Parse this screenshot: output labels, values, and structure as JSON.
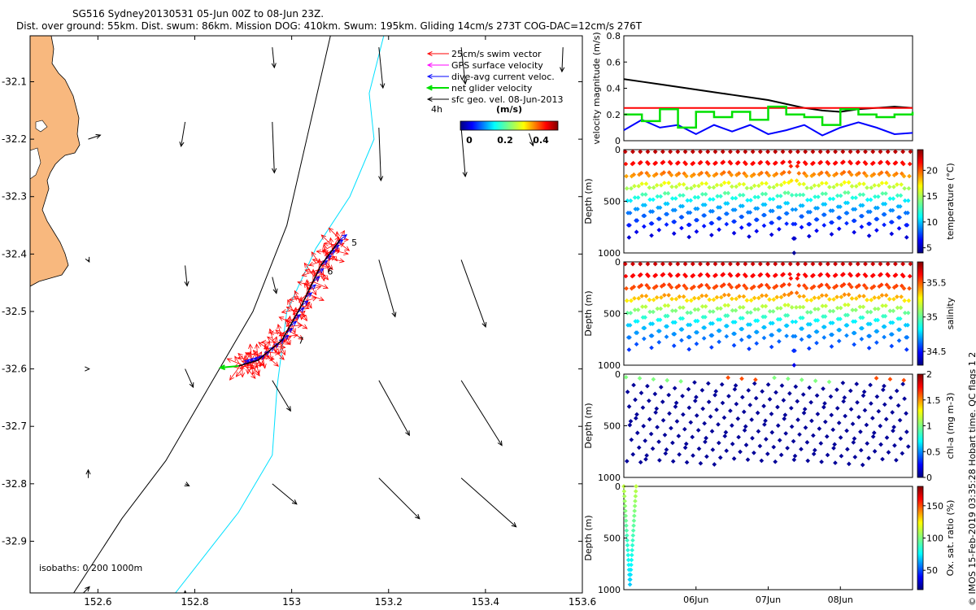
{
  "header": {
    "title": "SG516 Sydney20130531 05-Jun 00Z to 08-Jun 23Z.",
    "subtitle": "Dist. over ground: 55km. Dist. swum: 86km. Mission DOG: 410km. Swum: 195km. Gliding 14cm/s 273T COG-DAC=12cm/s 276T"
  },
  "stamp": "© IMOS 15-Feb-2019 03:35:28 Hobart time. QC flags 1 2",
  "colors": {
    "land": "#f8b87e",
    "isobath_200": "#000000",
    "isobath_1000": "#00e0ff",
    "swim": "#ff0000",
    "gps": "#ff00ff",
    "dac": "#0000ff",
    "net": "#00e000",
    "sfc": "#000000"
  },
  "map": {
    "legend": [
      {
        "label": "25cm/s swim vector",
        "color": "#ff0000"
      },
      {
        "label": "GPS surface velocity",
        "color": "#ff00ff"
      },
      {
        "label": "dive-avg current veloc.",
        "color": "#0000ff"
      },
      {
        "label": "net glider velocity",
        "color": "#00e000"
      },
      {
        "label": "sfc geo. vel. 08-Jun-2013",
        "color": "#000000"
      }
    ],
    "scale_note": "4h",
    "colorbar_unit": "(m/s)",
    "colorbar_ticks": [
      "0",
      "0.2",
      "0.4"
    ],
    "isobaths_label": "isobaths: 0   200  1000m",
    "day_labels": [
      "5",
      "6",
      "7"
    ]
  },
  "chart_data": [
    {
      "type": "map-vector",
      "xticks": [
        152.6,
        152.8,
        153,
        153.2,
        153.4,
        153.6
      ],
      "xtick_labels": [
        "152.6",
        "152.8",
        "153",
        "153.2",
        "153.4",
        "153.6"
      ],
      "yticks": [
        -32.1,
        -32.2,
        -32.3,
        -32.4,
        -32.5,
        -32.6,
        -32.7,
        -32.8,
        -32.9
      ],
      "xlim": [
        152.46,
        153.6
      ],
      "ylim": [
        -32.99,
        -32.02
      ],
      "isobath_200": [
        [
          153.08,
          -32.02
        ],
        [
          152.99,
          -32.35
        ],
        [
          152.92,
          -32.5
        ],
        [
          152.83,
          -32.63
        ],
        [
          152.74,
          -32.76
        ],
        [
          152.65,
          -32.86
        ],
        [
          152.55,
          -32.99
        ]
      ],
      "isobath_1000": [
        [
          153.19,
          -32.02
        ],
        [
          153.16,
          -32.12
        ],
        [
          153.17,
          -32.2
        ],
        [
          153.12,
          -32.3
        ],
        [
          153.05,
          -32.39
        ],
        [
          152.99,
          -32.5
        ],
        [
          152.97,
          -32.63
        ],
        [
          152.96,
          -32.75
        ],
        [
          152.89,
          -32.85
        ],
        [
          152.76,
          -32.99
        ]
      ],
      "glider_track": [
        [
          153.1,
          -32.375
        ],
        [
          153.06,
          -32.42
        ],
        [
          153.02,
          -32.49
        ],
        [
          152.98,
          -32.55
        ],
        [
          152.93,
          -32.585
        ],
        [
          152.89,
          -32.595
        ]
      ],
      "day_positions": [
        [
          153.11,
          -32.38
        ],
        [
          153.06,
          -32.43
        ],
        [
          153.0,
          -32.55
        ]
      ],
      "sfc_vectors": [
        {
          "lon": 152.58,
          "lat": -32.2,
          "u": 0.06,
          "v": 0.02
        },
        {
          "lon": 152.78,
          "lat": -32.17,
          "u": -0.02,
          "v": -0.12
        },
        {
          "lon": 152.96,
          "lat": -32.17,
          "u": 0.01,
          "v": -0.25
        },
        {
          "lon": 153.18,
          "lat": -32.18,
          "u": 0.01,
          "v": -0.26
        },
        {
          "lon": 153.35,
          "lat": -32.18,
          "u": 0.02,
          "v": -0.24
        },
        {
          "lon": 153.49,
          "lat": -32.19,
          "u": 0.02,
          "v": -0.06
        },
        {
          "lon": 152.96,
          "lat": -32.04,
          "u": 0.01,
          "v": -0.1
        },
        {
          "lon": 153.18,
          "lat": -32.04,
          "u": 0.02,
          "v": -0.2
        },
        {
          "lon": 153.35,
          "lat": -32.04,
          "u": 0.02,
          "v": -0.18
        },
        {
          "lon": 153.56,
          "lat": -32.04,
          "u": -0.005,
          "v": -0.12
        },
        {
          "lon": 152.58,
          "lat": -32.41,
          "u": 0.005,
          "v": -0.01
        },
        {
          "lon": 152.78,
          "lat": -32.42,
          "u": 0.01,
          "v": -0.1
        },
        {
          "lon": 152.96,
          "lat": -32.44,
          "u": 0.02,
          "v": -0.08
        },
        {
          "lon": 153.18,
          "lat": -32.41,
          "u": 0.08,
          "v": -0.28
        },
        {
          "lon": 153.35,
          "lat": -32.41,
          "u": 0.12,
          "v": -0.33
        },
        {
          "lon": 152.58,
          "lat": -32.6,
          "u": 0.005,
          "v": 0.0
        },
        {
          "lon": 152.78,
          "lat": -32.6,
          "u": 0.04,
          "v": -0.09
        },
        {
          "lon": 152.96,
          "lat": -32.62,
          "u": 0.09,
          "v": -0.15
        },
        {
          "lon": 153.18,
          "lat": -32.62,
          "u": 0.15,
          "v": -0.27
        },
        {
          "lon": 153.35,
          "lat": -32.62,
          "u": 0.2,
          "v": -0.32
        },
        {
          "lon": 152.58,
          "lat": -32.79,
          "u": 0.0,
          "v": 0.04
        },
        {
          "lon": 152.78,
          "lat": -32.8,
          "u": 0.02,
          "v": -0.01
        },
        {
          "lon": 152.96,
          "lat": -32.8,
          "u": 0.12,
          "v": -0.1
        },
        {
          "lon": 153.18,
          "lat": -32.79,
          "u": 0.2,
          "v": -0.2
        },
        {
          "lon": 153.35,
          "lat": -32.79,
          "u": 0.27,
          "v": -0.24
        },
        {
          "lon": 152.57,
          "lat": -32.99,
          "u": 0.03,
          "v": 0.03
        },
        {
          "lon": 152.78,
          "lat": -32.99,
          "u": 0.0,
          "v": 0.01
        }
      ]
    },
    {
      "type": "line",
      "ylabel": "velocity magnitude (m/s)",
      "ylim": [
        0,
        0.8
      ],
      "yticks": [
        0,
        0.2,
        0.4,
        0.6,
        0.8
      ],
      "xlim": [
        5.0,
        9.0
      ],
      "x": [
        5.0,
        5.25,
        5.5,
        5.75,
        6.0,
        6.25,
        6.5,
        6.75,
        7.0,
        7.25,
        7.5,
        7.75,
        8.0,
        8.25,
        8.5,
        8.75,
        9.0
      ],
      "series": [
        {
          "key": "sfc",
          "color": "#000000",
          "values": [
            0.47,
            0.45,
            0.43,
            0.41,
            0.39,
            0.37,
            0.35,
            0.33,
            0.31,
            0.28,
            0.25,
            0.23,
            0.22,
            0.24,
            0.25,
            0.26,
            0.25
          ]
        },
        {
          "key": "swim",
          "color": "#ff0000",
          "values": [
            0.25,
            0.25,
            0.25,
            0.25,
            0.25,
            0.25,
            0.25,
            0.25,
            0.25,
            0.25,
            0.25,
            0.25,
            0.25,
            0.25,
            0.25,
            0.25,
            0.25
          ]
        },
        {
          "key": "dac",
          "color": "#0000ff",
          "values": [
            0.08,
            0.16,
            0.1,
            0.12,
            0.05,
            0.12,
            0.07,
            0.12,
            0.05,
            0.08,
            0.12,
            0.04,
            0.1,
            0.14,
            0.1,
            0.05,
            0.06
          ]
        },
        {
          "key": "net",
          "color": "#00e000",
          "values": [
            0.2,
            0.15,
            0.24,
            0.1,
            0.22,
            0.18,
            0.22,
            0.16,
            0.26,
            0.2,
            0.18,
            0.12,
            0.24,
            0.2,
            0.18,
            0.2,
            0.22
          ]
        }
      ]
    },
    {
      "type": "scatter",
      "variable": "temperature",
      "ylabel": "Depth (m)",
      "clabel": "temperature (°C)",
      "ylim": [
        0,
        1000
      ],
      "yticks": [
        0,
        500,
        1000
      ],
      "clim": [
        4,
        24
      ],
      "cticks": [
        5,
        10,
        15,
        20
      ],
      "xlim": [
        5.0,
        9.0
      ],
      "dives": 38,
      "top": 20,
      "max_depth": 850,
      "deep_dive_depth": 1000,
      "deep_dive_time": 7.35,
      "colorbar": "jet",
      "profile": [
        [
          0,
          23
        ],
        [
          100,
          22
        ],
        [
          200,
          20
        ],
        [
          300,
          17
        ],
        [
          400,
          14
        ],
        [
          500,
          11
        ],
        [
          600,
          9
        ],
        [
          800,
          6
        ],
        [
          1000,
          4.5
        ]
      ]
    },
    {
      "type": "scatter",
      "variable": "salinity",
      "ylabel": "Depth (m)",
      "clabel": "salinity",
      "ylim": [
        0,
        1000
      ],
      "yticks": [
        0,
        500,
        1000
      ],
      "clim": [
        34.3,
        35.8
      ],
      "cticks": [
        34.5,
        35,
        35.5
      ],
      "xlim": [
        5.0,
        9.0
      ],
      "dives": 38,
      "top": 20,
      "max_depth": 850,
      "deep_dive_depth": 1000,
      "deep_dive_time": 7.35,
      "colorbar": "jet",
      "profile": [
        [
          0,
          35.7
        ],
        [
          150,
          35.6
        ],
        [
          300,
          35.45
        ],
        [
          400,
          35.2
        ],
        [
          500,
          35.0
        ],
        [
          600,
          34.8
        ],
        [
          800,
          34.6
        ],
        [
          1000,
          34.45
        ]
      ]
    },
    {
      "type": "scatter",
      "variable": "chl-a",
      "ylabel": "Depth (m)",
      "clabel": "chl-a (mg m-3)",
      "ylim": [
        0,
        1000
      ],
      "yticks": [
        0,
        500,
        1000
      ],
      "clim": [
        0,
        2
      ],
      "cticks": [
        0,
        0.5,
        1,
        1.5,
        2
      ],
      "xlim": [
        5.0,
        9.0
      ],
      "colorbar": "jet",
      "note": "sparse points, mostly ~0 (dark blue) below 100 m; green/cyan near surface"
    },
    {
      "type": "scatter",
      "variable": "oxygen",
      "ylabel": "Depth (m)",
      "clabel": "Ox. sat. ratio (%)",
      "ylim": [
        0,
        1000
      ],
      "yticks": [
        0,
        500,
        1000
      ],
      "clim": [
        20,
        180
      ],
      "cticks": [
        50,
        100,
        150
      ],
      "xlim": [
        5.0,
        9.0
      ],
      "xticks": [
        6,
        7,
        8
      ],
      "xtick_labels": [
        "06Jun",
        "07Jun",
        "08Jun"
      ],
      "colorbar": "jet",
      "note": "single V-shaped profile near start of record, 0 to ~950 m, colors green/teal"
    }
  ]
}
